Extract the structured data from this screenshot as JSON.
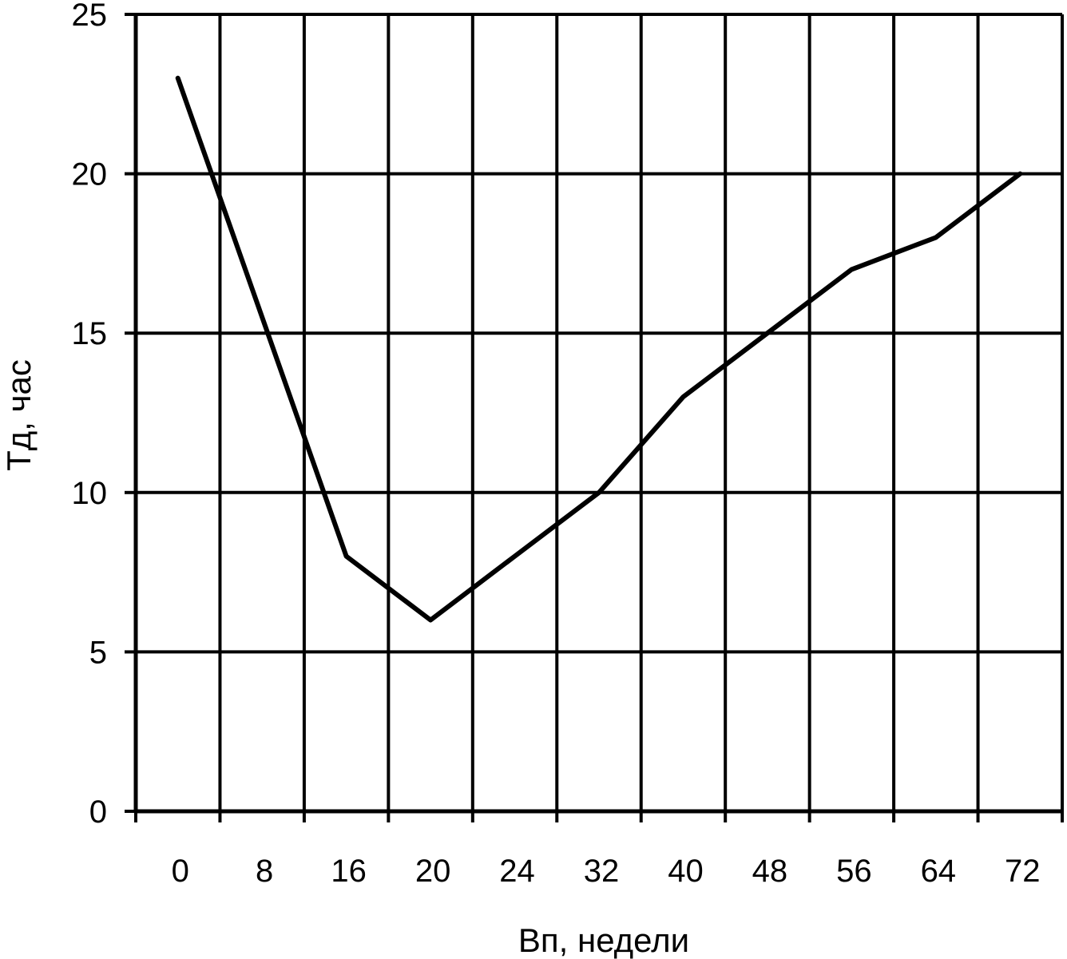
{
  "chart_data": {
    "type": "line",
    "xlabel": "Вп, недели",
    "ylabel": "Тд, час",
    "ylim": [
      0,
      25
    ],
    "yticks": [
      "0",
      "5",
      "10",
      "15",
      "20",
      "25"
    ],
    "categories": [
      "0",
      "8",
      "16",
      "20",
      "24",
      "32",
      "40",
      "48",
      "56",
      "64",
      "72"
    ],
    "grid": true,
    "legend": "none",
    "series": [
      {
        "values": [
          23,
          15.5,
          8,
          6,
          8,
          10,
          13,
          15,
          17,
          18,
          20
        ]
      }
    ],
    "colors": {
      "line": "#000000",
      "grid": "#000000",
      "background": "#ffffff"
    }
  }
}
